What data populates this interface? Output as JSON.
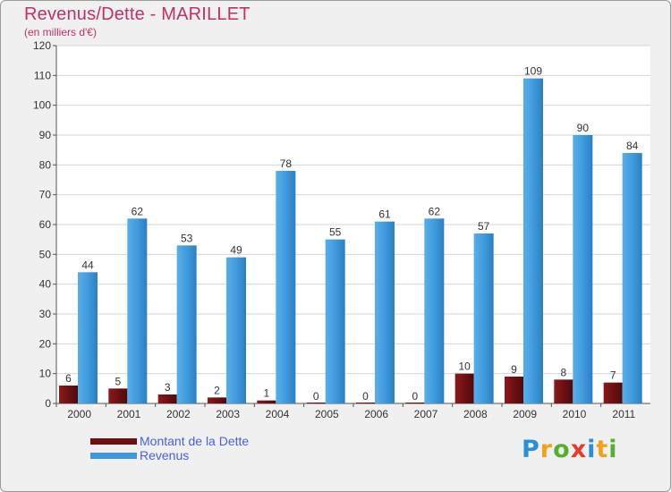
{
  "chart_data": {
    "type": "bar",
    "title": "Revenus/Dette - MARILLET",
    "subtitle": "(en milliers d'€)",
    "categories": [
      "2000",
      "2001",
      "2002",
      "2003",
      "2004",
      "2005",
      "2006",
      "2007",
      "2008",
      "2009",
      "2010",
      "2011"
    ],
    "series": [
      {
        "name": "Montant de la Dette",
        "color": "#6b0f12",
        "values": [
          6,
          5,
          3,
          2,
          1,
          0,
          0,
          0,
          10,
          9,
          8,
          7
        ]
      },
      {
        "name": "Revenus",
        "color": "#3d99dc",
        "values": [
          44,
          62,
          53,
          49,
          78,
          55,
          61,
          62,
          57,
          109,
          90,
          84
        ]
      }
    ],
    "ylim": [
      0,
      120
    ],
    "yticks": [
      0,
      10,
      20,
      30,
      40,
      50,
      60,
      70,
      80,
      90,
      100,
      110,
      120
    ],
    "grid": true,
    "legend_position": "bottom-left"
  },
  "logo": {
    "letters": [
      {
        "ch": "P",
        "color": "#2a8fd6"
      },
      {
        "ch": "r",
        "color": "#f2a21a"
      },
      {
        "ch": "o",
        "color": "#55b030"
      },
      {
        "ch": "x",
        "color": "#e63a2a"
      },
      {
        "ch": "i",
        "color": "#2a8fd6"
      },
      {
        "ch": "t",
        "color": "#f2a21a"
      },
      {
        "ch": "i",
        "color": "#55b030"
      }
    ]
  }
}
